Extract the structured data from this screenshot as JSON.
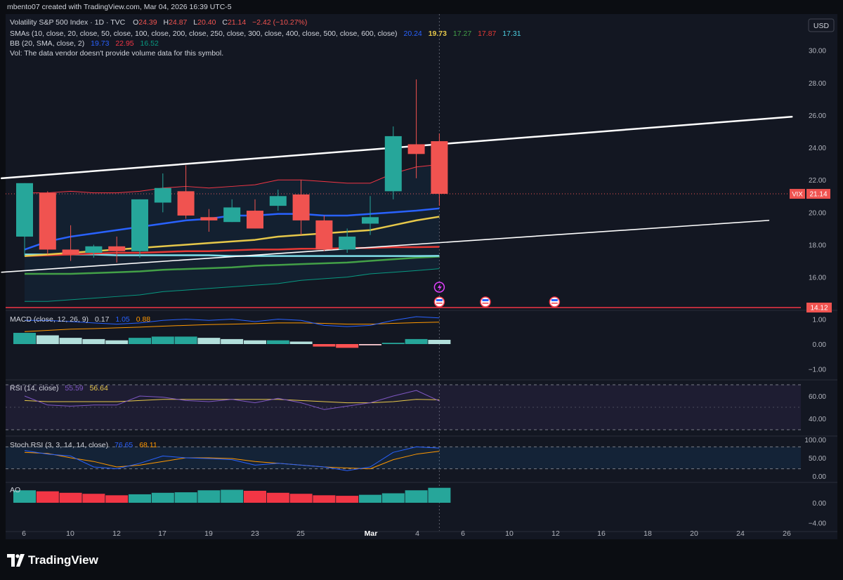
{
  "header": {
    "credit": "mbento07 created with TradingView.com, Mar 04, 2026 16:39 UTC-5",
    "symbol_line": "Volatility S&P 500 Index · 1D · TVC",
    "ohlc": [
      {
        "label": "O",
        "value": "24.39"
      },
      {
        "label": "H",
        "value": "24.87"
      },
      {
        "label": "L",
        "value": "20.40"
      },
      {
        "label": "C",
        "value": "21.14"
      }
    ],
    "change": "−2.42 (−10.27%)",
    "sma_label": "SMAs (10, close, 20, close, 50, close, 100, close, 200, close, 250, close, 300, close, 400, close, 500, close, 600, close)",
    "sma_values": [
      {
        "value": "20.24",
        "color": "#2962ff"
      },
      {
        "value": "19.73",
        "color": "#e6c84a"
      },
      {
        "value": "17.27",
        "color": "#43a047"
      },
      {
        "value": "17.87",
        "color": "#e53935"
      },
      {
        "value": "17.31",
        "color": "#4dd0e1"
      }
    ],
    "bb_label": "BB (20, SMA, close, 2)",
    "bb_values": [
      {
        "value": "19.73",
        "color": "#2962ff"
      },
      {
        "value": "22.95",
        "color": "#f23645"
      },
      {
        "value": "16.52",
        "color": "#089981"
      }
    ],
    "vol_note": "Vol: The data vendor doesn't provide volume data for this symbol."
  },
  "currency_button": "USD",
  "price_tag": {
    "symbol": "VIX",
    "value": "21.14"
  },
  "level_tag": "14.12",
  "footer": {
    "brand": "TradingView"
  },
  "colors": {
    "up": "#26a69a",
    "down": "#f05350",
    "background": "#131722",
    "grid": "#1e222d",
    "text": "#d1d4dc"
  },
  "chart_data": {
    "type": "candlestick",
    "x_axis_labels": [
      "6",
      "10",
      "12",
      "17",
      "19",
      "23",
      "25",
      "Mar",
      "4",
      "6",
      "10",
      "12",
      "16",
      "18",
      "20",
      "24",
      "26"
    ],
    "dates": [
      "Feb 5",
      "Feb 6",
      "Feb 9",
      "Feb 10",
      "Feb 11",
      "Feb 12",
      "Feb 13",
      "Feb 17",
      "Feb 18",
      "Feb 19",
      "Feb 20",
      "Feb 23",
      "Feb 24",
      "Feb 25",
      "Feb 26",
      "Feb 27",
      "Mar 2",
      "Mar 3",
      "Mar 4"
    ],
    "open": [
      18.5,
      21.2,
      17.7,
      17.5,
      17.9,
      17.6,
      20.6,
      21.3,
      19.7,
      19.4,
      20.1,
      20.4,
      21.1,
      19.5,
      17.7,
      19.3,
      21.3,
      24.2,
      24.39
    ],
    "high": [
      21.8,
      21.3,
      19.2,
      18.0,
      18.5,
      20.8,
      22.4,
      22.9,
      20.2,
      20.8,
      20.8,
      21.4,
      22.0,
      19.8,
      19.0,
      21.0,
      25.3,
      28.2,
      24.87
    ],
    "low": [
      17.3,
      17.4,
      17.0,
      17.2,
      16.9,
      17.2,
      20.0,
      19.6,
      18.8,
      19.4,
      19.0,
      20.1,
      18.6,
      17.6,
      17.5,
      18.6,
      20.8,
      22.1,
      20.4
    ],
    "close": [
      21.8,
      17.7,
      17.4,
      17.9,
      17.6,
      20.8,
      21.5,
      19.8,
      19.5,
      20.3,
      19.0,
      21.0,
      19.5,
      17.7,
      18.5,
      19.7,
      24.7,
      23.6,
      21.14
    ],
    "y_ticks": [
      "30.00",
      "28.00",
      "26.00",
      "24.00",
      "22.00",
      "20.00",
      "18.00",
      "16.00"
    ],
    "ylim": [
      14.12,
      30.5
    ],
    "last_price": 21.14,
    "sma10": [
      17.7,
      18.2,
      18.5,
      18.7,
      18.9,
      19.1,
      19.3,
      19.5,
      19.6,
      19.8,
      19.8,
      19.9,
      19.9,
      19.8,
      19.8,
      19.9,
      20.0,
      20.1,
      20.24
    ],
    "sma20": [
      17.3,
      17.4,
      17.5,
      17.6,
      17.7,
      17.8,
      17.9,
      18.0,
      18.1,
      18.2,
      18.3,
      18.5,
      18.6,
      18.7,
      18.8,
      18.9,
      19.2,
      19.5,
      19.73
    ],
    "sma_red": [
      17.3,
      17.35,
      17.4,
      17.45,
      17.5,
      17.5,
      17.55,
      17.6,
      17.6,
      17.65,
      17.7,
      17.7,
      17.75,
      17.75,
      17.8,
      17.8,
      17.85,
      17.85,
      17.87
    ],
    "sma_cyan": [
      17.4,
      17.4,
      17.4,
      17.4,
      17.35,
      17.35,
      17.35,
      17.35,
      17.35,
      17.3,
      17.3,
      17.3,
      17.3,
      17.3,
      17.3,
      17.3,
      17.3,
      17.3,
      17.31
    ],
    "sma_green": [
      16.2,
      16.2,
      16.2,
      16.25,
      16.3,
      16.35,
      16.45,
      16.5,
      16.55,
      16.6,
      16.7,
      16.75,
      16.8,
      16.85,
      16.9,
      17.0,
      17.1,
      17.2,
      17.27
    ],
    "bb_upper": [
      21.2,
      21.2,
      21.3,
      21.2,
      21.2,
      21.3,
      21.5,
      21.6,
      21.5,
      21.6,
      21.7,
      22.0,
      22.0,
      21.9,
      21.8,
      21.8,
      22.4,
      22.8,
      22.95
    ],
    "bb_lower": [
      14.5,
      14.5,
      14.6,
      14.7,
      14.8,
      14.9,
      15.1,
      15.2,
      15.3,
      15.4,
      15.5,
      15.6,
      15.8,
      15.9,
      16.0,
      16.2,
      16.3,
      16.4,
      16.52
    ],
    "trendlines": [
      {
        "from": {
          "date": "Feb 4",
          "value": 22.1
        },
        "to": {
          "date": "Mar 25",
          "value": 25.9
        }
      },
      {
        "from": {
          "date": "Feb 4",
          "value": 16.3
        },
        "to": {
          "date": "Mar 24",
          "value": 19.5
        }
      }
    ],
    "horizontal_level": 14.12,
    "macd": {
      "label": "MACD (close, 12, 26, 9)",
      "values": [
        "0.17",
        "1.05",
        "0.88"
      ],
      "y_ticks": [
        "1.00",
        "0.00",
        "−1.00"
      ],
      "ylim": [
        -1.2,
        1.3
      ],
      "macd_line": [
        0.95,
        0.95,
        0.9,
        0.85,
        0.8,
        0.85,
        0.95,
        1.0,
        0.95,
        1.0,
        0.9,
        1.0,
        0.95,
        0.75,
        0.7,
        0.75,
        0.95,
        1.1,
        1.05
      ],
      "signal_line": [
        0.5,
        0.55,
        0.6,
        0.62,
        0.65,
        0.68,
        0.72,
        0.75,
        0.78,
        0.8,
        0.82,
        0.85,
        0.85,
        0.83,
        0.8,
        0.8,
        0.83,
        0.86,
        0.88
      ],
      "histogram": [
        0.45,
        0.35,
        0.25,
        0.2,
        0.15,
        0.25,
        0.3,
        0.3,
        0.25,
        0.2,
        0.15,
        0.15,
        0.1,
        -0.1,
        -0.15,
        -0.05,
        0.05,
        0.2,
        0.17
      ]
    },
    "rsi": {
      "label": "RSI (14, close)",
      "values": [
        "55.59",
        "56.64"
      ],
      "y_ticks": [
        "60.00",
        "40.00"
      ],
      "ylim": [
        25,
        75
      ],
      "bands": [
        70,
        30
      ],
      "rsi_line": [
        60,
        52,
        51,
        52,
        52,
        60,
        59,
        56,
        55,
        57,
        54,
        58,
        54,
        48,
        51,
        54,
        60,
        65,
        55.59
      ],
      "signal_line": [
        56,
        55,
        55,
        55,
        55,
        56,
        57,
        57,
        57,
        57,
        57,
        57,
        56,
        55,
        54,
        54,
        55,
        57,
        56.64
      ]
    },
    "stoch_rsi": {
      "label": "Stoch RSI (3, 3, 14, 14, close)",
      "values": [
        "76.65",
        "68.11"
      ],
      "y_ticks": [
        "100.00",
        "50.00",
        "0.00"
      ],
      "ylim": [
        -5,
        105
      ],
      "bands": [
        80,
        20
      ],
      "k_line": [
        70,
        60,
        55,
        25,
        20,
        35,
        55,
        50,
        48,
        45,
        30,
        35,
        30,
        25,
        15,
        25,
        65,
        80,
        76.65
      ],
      "d_line": [
        65,
        62,
        50,
        40,
        25,
        30,
        40,
        50,
        50,
        48,
        40,
        35,
        30,
        25,
        22,
        20,
        45,
        60,
        68.11
      ]
    },
    "ao": {
      "label": "AO",
      "y_ticks": [
        "0.00",
        "−4.00"
      ],
      "ylim": [
        -4.8,
        3.4
      ],
      "histogram": [
        2.5,
        2.3,
        2.0,
        1.8,
        1.5,
        1.7,
        2.0,
        2.1,
        2.5,
        2.6,
        2.4,
        2.0,
        1.8,
        1.5,
        1.4,
        1.6,
        1.9,
        2.5,
        3.0
      ],
      "growing": [
        true,
        false,
        false,
        false,
        false,
        true,
        true,
        true,
        true,
        true,
        false,
        false,
        false,
        false,
        false,
        true,
        true,
        true,
        true
      ]
    }
  }
}
